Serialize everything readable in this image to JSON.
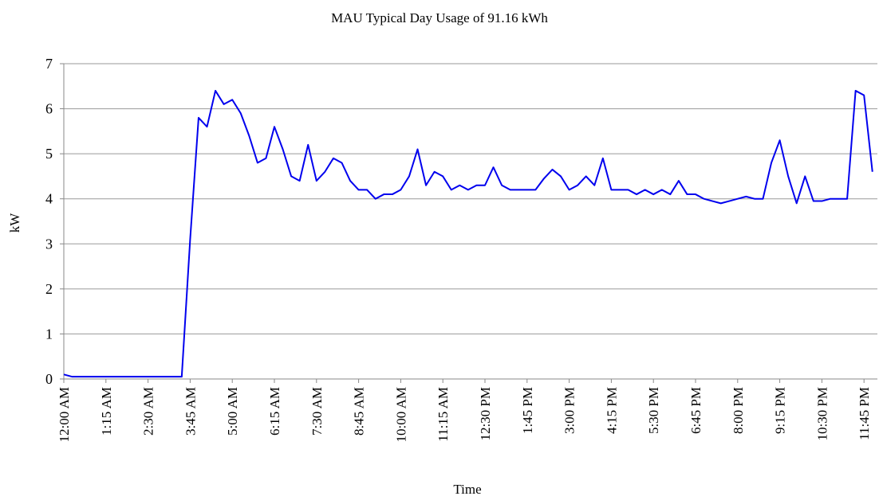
{
  "chart_data": {
    "type": "line",
    "title": "MAU Typical Day Usage of 91.16 kWh",
    "x_label": "Time",
    "y_label": "kW",
    "categories": [
      "12:00 AM",
      null,
      null,
      null,
      null,
      "1:15 AM",
      null,
      null,
      null,
      null,
      "2:30 AM",
      null,
      null,
      null,
      null,
      "3:45 AM",
      null,
      null,
      null,
      null,
      "5:00 AM",
      null,
      null,
      null,
      null,
      "6:15 AM",
      null,
      null,
      null,
      null,
      "7:30 AM",
      null,
      null,
      null,
      null,
      "8:45 AM",
      null,
      null,
      null,
      null,
      "10:00 AM",
      null,
      null,
      null,
      null,
      "11:15 AM",
      null,
      null,
      null,
      null,
      "12:30 PM",
      null,
      null,
      null,
      null,
      "1:45 PM",
      null,
      null,
      null,
      null,
      "3:00 PM",
      null,
      null,
      null,
      null,
      "4:15 PM",
      null,
      null,
      null,
      null,
      "5:30 PM",
      null,
      null,
      null,
      null,
      "6:45 PM",
      null,
      null,
      null,
      null,
      "8:00 PM",
      null,
      null,
      null,
      null,
      "9:15 PM",
      null,
      null,
      null,
      null,
      "10:30 PM",
      null,
      null,
      null,
      null,
      "11:45 PM",
      null
    ],
    "series": [
      {
        "name": "kW",
        "color": "#0000ee",
        "values": [
          0.1,
          0.05,
          0.05,
          0.05,
          0.05,
          0.05,
          0.05,
          0.05,
          0.05,
          0.05,
          0.05,
          0.05,
          0.05,
          0.05,
          0.05,
          3.1,
          5.8,
          5.6,
          6.4,
          6.1,
          6.2,
          5.9,
          5.4,
          4.8,
          4.9,
          5.6,
          5.1,
          4.5,
          4.4,
          5.2,
          4.4,
          4.6,
          4.9,
          4.8,
          4.4,
          4.2,
          4.2,
          4.0,
          4.1,
          4.1,
          4.2,
          4.5,
          5.1,
          4.3,
          4.6,
          4.5,
          4.2,
          4.3,
          4.2,
          4.3,
          4.3,
          4.7,
          4.3,
          4.2,
          4.2,
          4.2,
          4.2,
          4.45,
          4.65,
          4.5,
          4.2,
          4.3,
          4.5,
          4.3,
          4.9,
          4.2,
          4.2,
          4.2,
          4.1,
          4.2,
          4.1,
          4.2,
          4.1,
          4.4,
          4.1,
          4.1,
          4.0,
          3.95,
          3.9,
          3.95,
          4.0,
          4.05,
          4.0,
          4.0,
          4.8,
          5.3,
          4.5,
          3.9,
          4.5,
          3.95,
          3.95,
          4.0,
          4.0,
          4.0,
          6.4,
          6.3,
          4.6
        ]
      }
    ],
    "ylim": [
      0,
      7
    ],
    "yticks": [
      0,
      1,
      2,
      3,
      4,
      5,
      6,
      7
    ],
    "grid": true
  }
}
